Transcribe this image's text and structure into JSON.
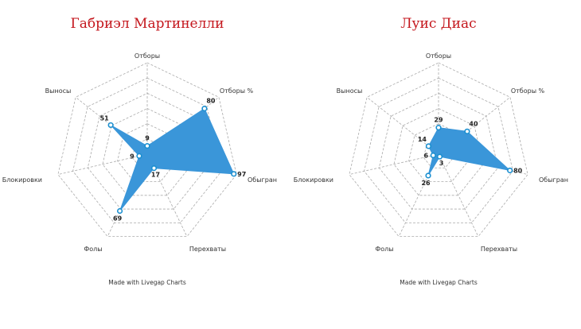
{
  "chart_data": [
    {
      "type": "radar",
      "title": "Габриэл Мартинелли",
      "axes": [
        "Отборы",
        "Отборы %",
        "Обыгран",
        "Перехваты",
        "Фолы",
        "Блокировки",
        "Выносы"
      ],
      "values": [
        9,
        80,
        97,
        17,
        69,
        9,
        51
      ],
      "value_labels": [
        "9",
        "80",
        "97",
        "17",
        "69",
        "9",
        "51"
      ],
      "rmax": 100,
      "rings": 6,
      "grid": true,
      "fill_color": "#3a96d9",
      "point_color": "#1a8fd0",
      "credit": "Made with Livegap Charts"
    },
    {
      "type": "radar",
      "title": "Луис Диас",
      "axes": [
        "Отборы",
        "Отборы %",
        "Обыгран",
        "Перехваты",
        "Фолы",
        "Блокировки",
        "Выносы"
      ],
      "values": [
        29,
        40,
        80,
        3,
        26,
        6,
        14
      ],
      "value_labels": [
        "29",
        "40",
        "80",
        "3",
        "26",
        "6",
        "14"
      ],
      "rmax": 100,
      "rings": 6,
      "grid": true,
      "fill_color": "#3a96d9",
      "point_color": "#1a8fd0",
      "credit": "Made with Livegap Charts"
    }
  ]
}
